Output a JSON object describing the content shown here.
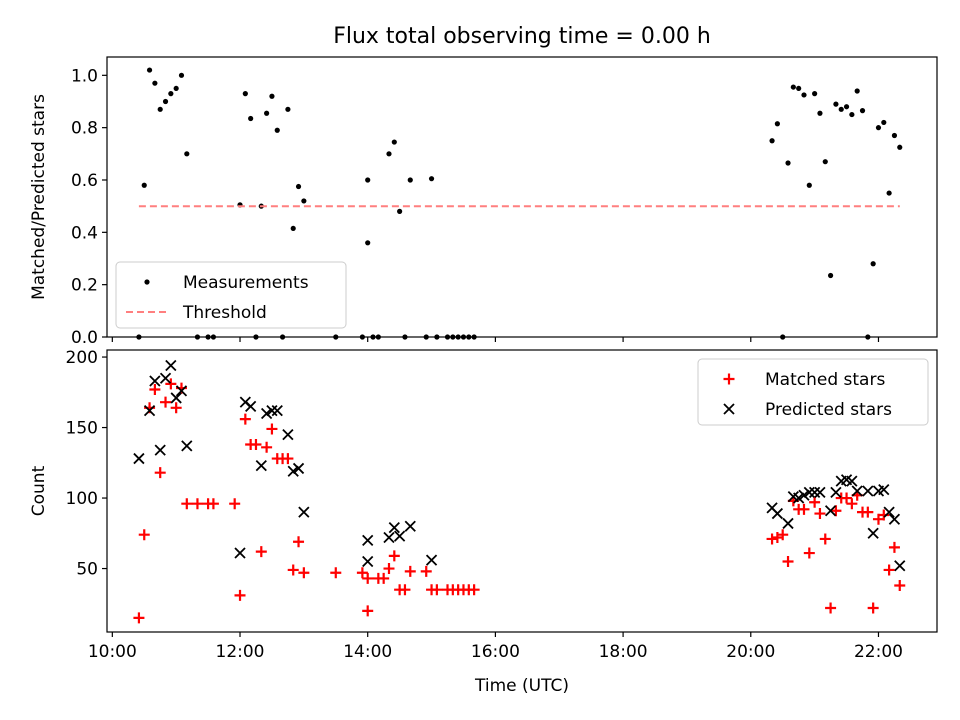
{
  "title": "Flux total observing time = 0.00 h",
  "chart_data": [
    {
      "type": "scatter",
      "panel": "top",
      "ylabel": "Matched/Predicted stars",
      "xlim": [
        "09:55",
        "22:55"
      ],
      "ylim": [
        0,
        1.07
      ],
      "x_ticks": [
        "10:00",
        "12:00",
        "14:00",
        "16:00",
        "18:00",
        "20:00",
        "22:00"
      ],
      "x_tick_labels_shown": false,
      "y_ticks": [
        "0.0",
        "0.2",
        "0.4",
        "0.6",
        "0.8",
        "1.0"
      ],
      "legend_position": "lower-left",
      "grid": false,
      "series": [
        {
          "name": "Measurements",
          "color": "#000000",
          "marker": "dot",
          "points": [
            [
              "10:25",
              0
            ],
            [
              "10:30",
              0.58
            ],
            [
              "10:35",
              1.02
            ],
            [
              "10:40",
              0.97
            ],
            [
              "10:45",
              0.87
            ],
            [
              "10:50",
              0.9
            ],
            [
              "10:55",
              0.93
            ],
            [
              "11:00",
              0.95
            ],
            [
              "11:05",
              1.0
            ],
            [
              "11:10",
              0.7
            ],
            [
              "11:20",
              0
            ],
            [
              "11:30",
              0
            ],
            [
              "11:35",
              0
            ],
            [
              "12:00",
              0.505
            ],
            [
              "12:05",
              0.93
            ],
            [
              "12:10",
              0.835
            ],
            [
              "12:15",
              0
            ],
            [
              "12:20",
              0.5
            ],
            [
              "12:25",
              0.855
            ],
            [
              "12:30",
              0.92
            ],
            [
              "12:35",
              0.79
            ],
            [
              "12:40",
              0
            ],
            [
              "12:45",
              0.87
            ],
            [
              "12:50",
              0.415
            ],
            [
              "12:55",
              0.575
            ],
            [
              "13:00",
              0.52
            ],
            [
              "13:30",
              0
            ],
            [
              "14:00",
              0.36
            ],
            [
              "13:55",
              0
            ],
            [
              "14:00",
              0.6
            ],
            [
              "14:05",
              0
            ],
            [
              "14:10",
              0
            ],
            [
              "14:20",
              0.7
            ],
            [
              "14:25",
              0.745
            ],
            [
              "14:30",
              0.48
            ],
            [
              "14:35",
              0
            ],
            [
              "14:40",
              0.6
            ],
            [
              "14:55",
              0
            ],
            [
              "15:00",
              0.605
            ],
            [
              "15:05",
              0
            ],
            [
              "15:15",
              0
            ],
            [
              "15:20",
              0
            ],
            [
              "15:25",
              0
            ],
            [
              "15:30",
              0
            ],
            [
              "15:35",
              0
            ],
            [
              "15:40",
              0
            ],
            [
              "20:20",
              0.75
            ],
            [
              "20:25",
              0.815
            ],
            [
              "20:30",
              0
            ],
            [
              "20:35",
              0.665
            ],
            [
              "20:40",
              0.955
            ],
            [
              "20:45",
              0.95
            ],
            [
              "20:50",
              0.925
            ],
            [
              "20:55",
              0.58
            ],
            [
              "21:00",
              0.93
            ],
            [
              "21:05",
              0.855
            ],
            [
              "21:10",
              0.67
            ],
            [
              "21:15",
              0.235
            ],
            [
              "21:20",
              0.89
            ],
            [
              "21:25",
              0.87
            ],
            [
              "21:30",
              0.88
            ],
            [
              "21:35",
              0.85
            ],
            [
              "21:40",
              0.94
            ],
            [
              "21:45",
              0.865
            ],
            [
              "21:50",
              0
            ],
            [
              "21:55",
              0.28
            ],
            [
              "22:00",
              0.8
            ],
            [
              "22:05",
              0.82
            ],
            [
              "22:10",
              0.55
            ],
            [
              "22:15",
              0.77
            ],
            [
              "22:20",
              0.725
            ]
          ]
        },
        {
          "name": "Threshold",
          "color": "#ff7f7f",
          "style": "dashed",
          "points": [
            [
              "10:25",
              0.5
            ],
            [
              "22:20",
              0.5
            ]
          ]
        }
      ]
    },
    {
      "type": "scatter",
      "panel": "bottom",
      "xlabel": "Time (UTC)",
      "ylabel": "Count",
      "xlim": [
        "09:55",
        "22:55"
      ],
      "ylim": [
        5,
        205
      ],
      "x_ticks": [
        "10:00",
        "12:00",
        "14:00",
        "16:00",
        "18:00",
        "20:00",
        "22:00"
      ],
      "y_ticks": [
        "50",
        "100",
        "150",
        "200"
      ],
      "legend_position": "upper-right",
      "grid": false,
      "series": [
        {
          "name": "Matched stars",
          "color": "#ff0000",
          "marker": "plus",
          "points": [
            [
              "10:25",
              15
            ],
            [
              "10:30",
              74
            ],
            [
              "10:35",
              164
            ],
            [
              "10:40",
              177
            ],
            [
              "10:45",
              118
            ],
            [
              "10:50",
              168
            ],
            [
              "10:55",
              181
            ],
            [
              "11:00",
              164
            ],
            [
              "11:05",
              178
            ],
            [
              "11:10",
              96
            ],
            [
              "11:20",
              96
            ],
            [
              "11:30",
              96
            ],
            [
              "11:35",
              96
            ],
            [
              "12:00",
              31
            ],
            [
              "11:55",
              96
            ],
            [
              "12:05",
              156
            ],
            [
              "12:10",
              138
            ],
            [
              "12:15",
              138
            ],
            [
              "12:20",
              62
            ],
            [
              "12:25",
              136
            ],
            [
              "12:30",
              149
            ],
            [
              "12:35",
              128
            ],
            [
              "12:40",
              128
            ],
            [
              "12:45",
              128
            ],
            [
              "12:50",
              49
            ],
            [
              "12:55",
              69
            ],
            [
              "13:00",
              47
            ],
            [
              "13:30",
              47
            ],
            [
              "14:00",
              20
            ],
            [
              "13:55",
              47
            ],
            [
              "14:00",
              43
            ],
            [
              "14:10",
              43
            ],
            [
              "14:15",
              43
            ],
            [
              "14:20",
              50
            ],
            [
              "14:25",
              59
            ],
            [
              "14:30",
              35
            ],
            [
              "14:35",
              35
            ],
            [
              "14:40",
              48
            ],
            [
              "14:55",
              48
            ],
            [
              "15:00",
              35
            ],
            [
              "15:05",
              35
            ],
            [
              "15:15",
              35
            ],
            [
              "15:20",
              35
            ],
            [
              "15:25",
              35
            ],
            [
              "15:30",
              35
            ],
            [
              "15:35",
              35
            ],
            [
              "15:40",
              35
            ],
            [
              "20:20",
              71
            ],
            [
              "20:25",
              72
            ],
            [
              "20:30",
              74
            ],
            [
              "20:35",
              55
            ],
            [
              "20:40",
              98
            ],
            [
              "20:45",
              92
            ],
            [
              "20:50",
              92
            ],
            [
              "20:55",
              61
            ],
            [
              "21:00",
              97
            ],
            [
              "21:05",
              89
            ],
            [
              "21:10",
              71
            ],
            [
              "21:15",
              22
            ],
            [
              "21:20",
              91
            ],
            [
              "21:25",
              100
            ],
            [
              "21:30",
              100
            ],
            [
              "21:35",
              96
            ],
            [
              "21:40",
              102
            ],
            [
              "21:45",
              90
            ],
            [
              "21:50",
              90
            ],
            [
              "21:55",
              22
            ],
            [
              "22:00",
              85
            ],
            [
              "22:05",
              88
            ],
            [
              "22:10",
              49
            ],
            [
              "22:15",
              65
            ],
            [
              "22:20",
              38
            ]
          ]
        },
        {
          "name": "Predicted stars",
          "color": "#000000",
          "marker": "x",
          "points": [
            [
              "10:25",
              128
            ],
            [
              "10:35",
              162
            ],
            [
              "10:40",
              183
            ],
            [
              "10:45",
              134
            ],
            [
              "10:50",
              185
            ],
            [
              "10:55",
              194
            ],
            [
              "11:00",
              171
            ],
            [
              "11:05",
              176
            ],
            [
              "11:10",
              137
            ],
            [
              "12:00",
              61
            ],
            [
              "12:05",
              168
            ],
            [
              "12:10",
              165
            ],
            [
              "12:20",
              123
            ],
            [
              "12:25",
              160
            ],
            [
              "12:30",
              162
            ],
            [
              "12:35",
              162
            ],
            [
              "12:45",
              145
            ],
            [
              "12:50",
              119
            ],
            [
              "12:55",
              121
            ],
            [
              "13:00",
              90
            ],
            [
              "14:00",
              55
            ],
            [
              "14:00",
              70
            ],
            [
              "14:20",
              72
            ],
            [
              "14:25",
              79
            ],
            [
              "14:30",
              73
            ],
            [
              "14:40",
              80
            ],
            [
              "15:00",
              56
            ],
            [
              "20:20",
              93
            ],
            [
              "20:25",
              89
            ],
            [
              "20:35",
              82
            ],
            [
              "20:40",
              101
            ],
            [
              "20:45",
              100
            ],
            [
              "20:50",
              102
            ],
            [
              "20:55",
              104
            ],
            [
              "21:00",
              104
            ],
            [
              "21:05",
              104
            ],
            [
              "21:15",
              91
            ],
            [
              "21:20",
              104
            ],
            [
              "21:25",
              112
            ],
            [
              "21:30",
              113
            ],
            [
              "21:35",
              112
            ],
            [
              "21:40",
              105
            ],
            [
              "21:50",
              105
            ],
            [
              "21:55",
              75
            ],
            [
              "22:00",
              105
            ],
            [
              "22:05",
              106
            ],
            [
              "22:10",
              90
            ],
            [
              "22:15",
              85
            ],
            [
              "22:20",
              52
            ]
          ]
        }
      ]
    }
  ]
}
